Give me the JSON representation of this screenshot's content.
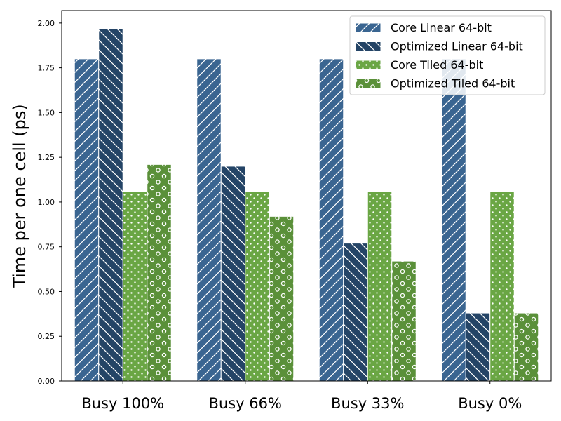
{
  "chart_data": {
    "type": "bar",
    "title": "",
    "xlabel": "",
    "ylabel": "Time per one cell (ps)",
    "categories": [
      "Busy 100%",
      "Busy 66%",
      "Busy 33%",
      "Busy 0%"
    ],
    "ylim": [
      0,
      2.07
    ],
    "yticks": [
      "0.00",
      "0.25",
      "0.50",
      "0.75",
      "1.00",
      "1.25",
      "1.50",
      "1.75",
      "2.00"
    ],
    "grid": false,
    "legend_position": "top-right",
    "series": [
      {
        "name": "Core Linear 64-bit",
        "values": [
          1.8,
          1.8,
          1.8,
          1.8
        ],
        "color": "#3a6591",
        "pattern": "diagonal-forward"
      },
      {
        "name": "Optimized Linear 64-bit",
        "values": [
          1.97,
          1.2,
          0.77,
          0.38
        ],
        "color": "#244466",
        "pattern": "diagonal-back"
      },
      {
        "name": "Core Tiled 64-bit",
        "values": [
          1.06,
          1.06,
          1.06,
          1.06
        ],
        "color": "#6aa644",
        "pattern": "dots"
      },
      {
        "name": "Optimized Tiled 64-bit",
        "values": [
          1.21,
          0.92,
          0.67,
          0.38
        ],
        "color": "#5a9039",
        "pattern": "circles"
      }
    ]
  }
}
